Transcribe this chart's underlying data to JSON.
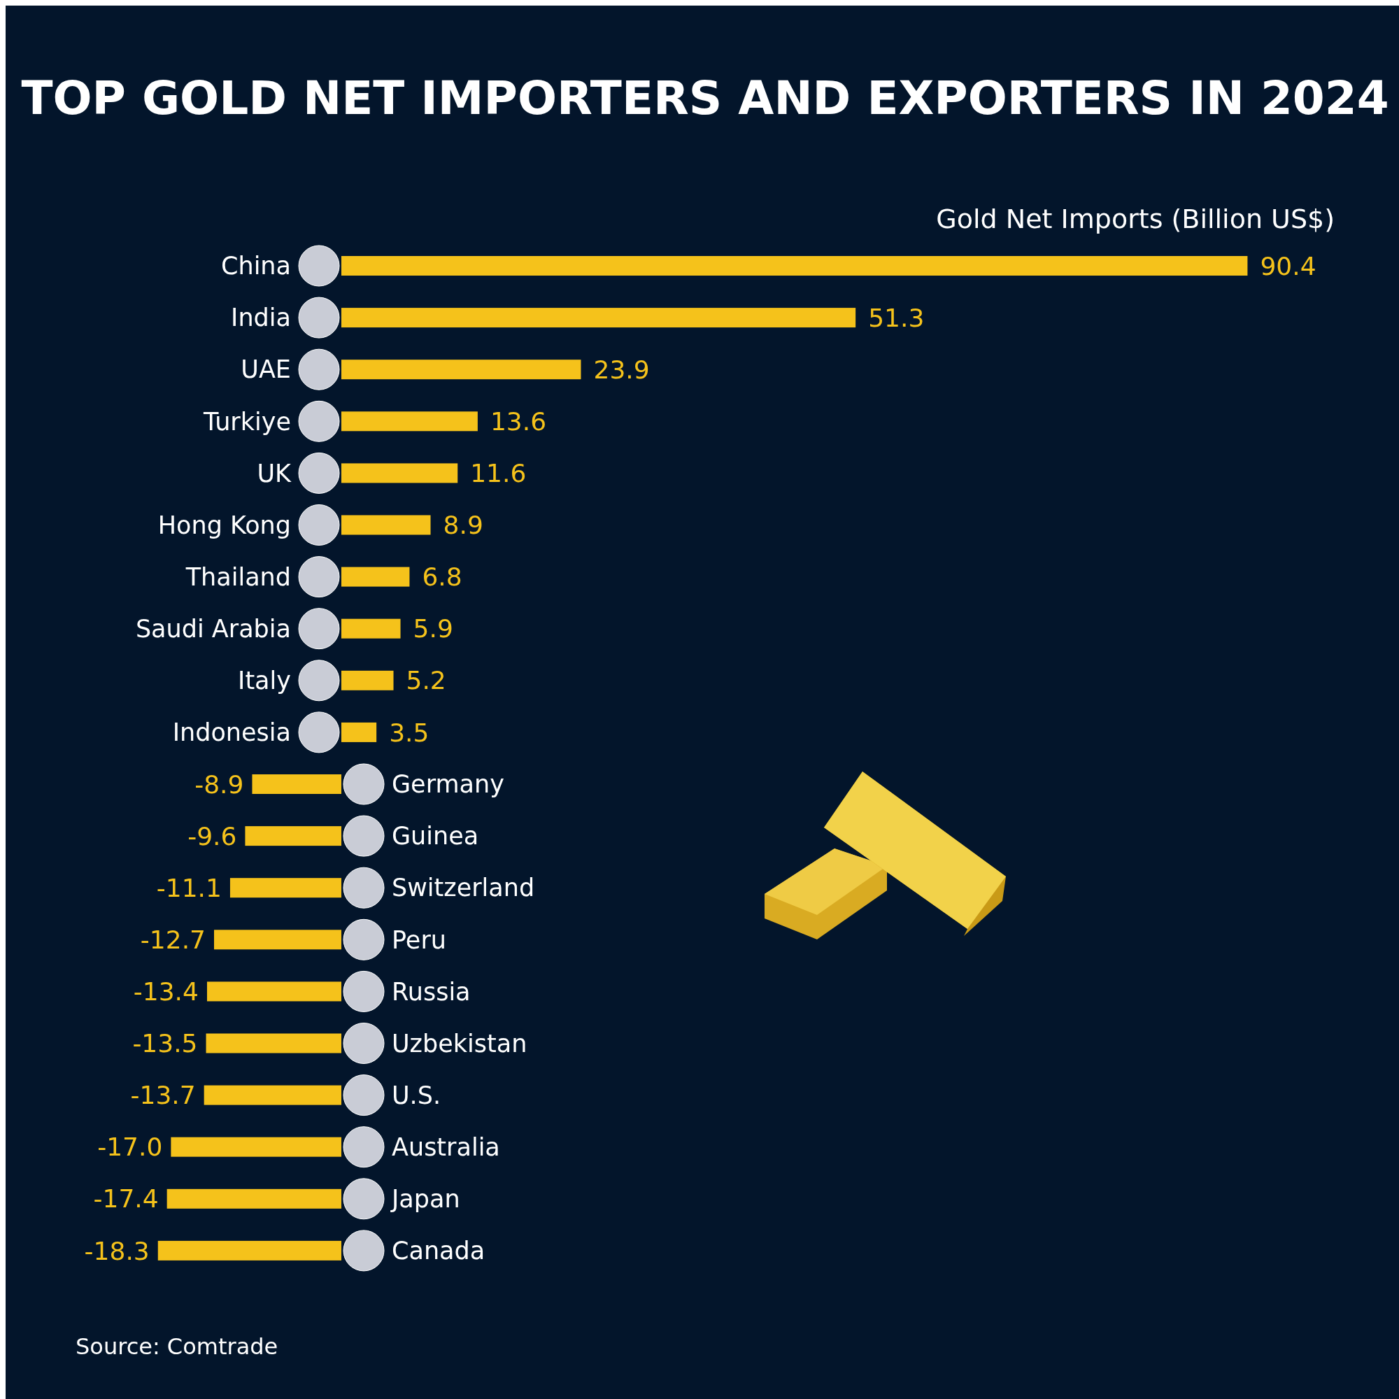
{
  "chart_data": {
    "type": "bar",
    "orientation": "horizontal",
    "title": "TOP GOLD NET IMPORTERS AND EXPORTERS IN 2024",
    "xlabel": "Gold Net Imports (Billion US$)",
    "categories": [
      "China",
      "India",
      "UAE",
      "Turkiye",
      "UK",
      "Hong Kong",
      "Thailand",
      "Saudi Arabia",
      "Italy",
      "Indonesia",
      "Germany",
      "Guinea",
      "Switzerland",
      "Peru",
      "Russia",
      "Uzbekistan",
      "U.S.",
      "Australia",
      "Japan",
      "Canada"
    ],
    "values": [
      90.4,
      51.3,
      23.9,
      13.6,
      11.6,
      8.9,
      6.8,
      5.9,
      5.2,
      3.5,
      -8.9,
      -9.6,
      -11.1,
      -12.7,
      -13.4,
      -13.5,
      -13.7,
      -17.0,
      -17.4,
      -18.3
    ],
    "color": "#f5c21b",
    "value_labels": [
      "90.4",
      "51.3",
      "23.9",
      "13.6",
      "11.6",
      "8.9",
      "6.8",
      "5.9",
      "5.2",
      "3.5",
      "-8.9",
      "-9.6",
      "-11.1",
      "-12.7",
      "-13.4",
      "-13.5",
      "-13.7",
      "-17.0",
      "-17.4",
      "-18.3"
    ],
    "annotations": [
      "Source: Comtrade"
    ]
  }
}
